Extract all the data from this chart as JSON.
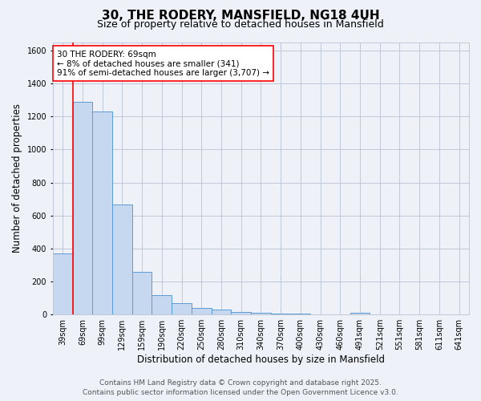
{
  "title": "30, THE RODERY, MANSFIELD, NG18 4UH",
  "subtitle": "Size of property relative to detached houses in Mansfield",
  "xlabel": "Distribution of detached houses by size in Mansfield",
  "ylabel": "Number of detached properties",
  "categories": [
    "39sqm",
    "69sqm",
    "99sqm",
    "129sqm",
    "159sqm",
    "190sqm",
    "220sqm",
    "250sqm",
    "280sqm",
    "310sqm",
    "340sqm",
    "370sqm",
    "400sqm",
    "430sqm",
    "460sqm",
    "491sqm",
    "521sqm",
    "551sqm",
    "581sqm",
    "611sqm",
    "641sqm"
  ],
  "values": [
    370,
    1290,
    1230,
    665,
    260,
    120,
    70,
    40,
    30,
    18,
    10,
    6,
    4,
    2,
    0,
    10,
    0,
    0,
    0,
    0,
    0
  ],
  "bar_color": "#c5d8f0",
  "bar_edge_color": "#5b9bd5",
  "highlight_bar_index": 1,
  "annotation_text": "30 THE RODERY: 69sqm\n← 8% of detached houses are smaller (341)\n91% of semi-detached houses are larger (3,707) →",
  "footer_line1": "Contains HM Land Registry data © Crown copyright and database right 2025.",
  "footer_line2": "Contains public sector information licensed under the Open Government Licence v3.0.",
  "ylim": [
    0,
    1650
  ],
  "background_color": "#eef2f8",
  "plot_background_color": "#eef2f8",
  "grid_color": "#c0c8d8",
  "title_fontsize": 11,
  "subtitle_fontsize": 9,
  "xlabel_fontsize": 8.5,
  "ylabel_fontsize": 8.5,
  "tick_fontsize": 7,
  "footer_fontsize": 6.5,
  "annotation_fontsize": 7.5
}
